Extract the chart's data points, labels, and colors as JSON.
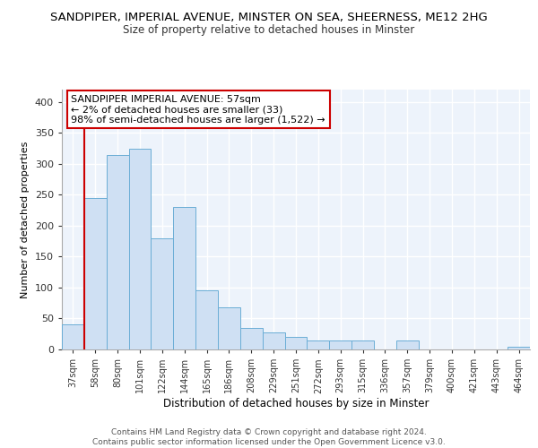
{
  "title1": "SANDPIPER, IMPERIAL AVENUE, MINSTER ON SEA, SHEERNESS, ME12 2HG",
  "title2": "Size of property relative to detached houses in Minster",
  "xlabel": "Distribution of detached houses by size in Minster",
  "ylabel": "Number of detached properties",
  "bar_color": "#cfe0f3",
  "bar_edge_color": "#6baed6",
  "background_color": "#edf3fb",
  "grid_color": "#ffffff",
  "annotation_box_color": "#cc0000",
  "annotation_text": "SANDPIPER IMPERIAL AVENUE: 57sqm",
  "annotation_line2": "← 2% of detached houses are smaller (33)",
  "annotation_line3": "98% of semi-detached houses are larger (1,522) →",
  "footer_line1": "Contains HM Land Registry data © Crown copyright and database right 2024.",
  "footer_line2": "Contains public sector information licensed under the Open Government Licence v3.0.",
  "categories": [
    "37sqm",
    "58sqm",
    "80sqm",
    "101sqm",
    "122sqm",
    "144sqm",
    "165sqm",
    "186sqm",
    "208sqm",
    "229sqm",
    "251sqm",
    "272sqm",
    "293sqm",
    "315sqm",
    "336sqm",
    "357sqm",
    "379sqm",
    "400sqm",
    "421sqm",
    "443sqm",
    "464sqm"
  ],
  "values": [
    40,
    245,
    315,
    325,
    180,
    230,
    95,
    68,
    35,
    28,
    20,
    14,
    14,
    14,
    0,
    14,
    0,
    0,
    0,
    0,
    5
  ],
  "ylim": [
    0,
    420
  ],
  "yticks": [
    0,
    50,
    100,
    150,
    200,
    250,
    300,
    350,
    400
  ],
  "red_line_x": 0.5,
  "title1_fontsize": 9.5,
  "title2_fontsize": 8.5,
  "footer_fontsize": 6.5
}
